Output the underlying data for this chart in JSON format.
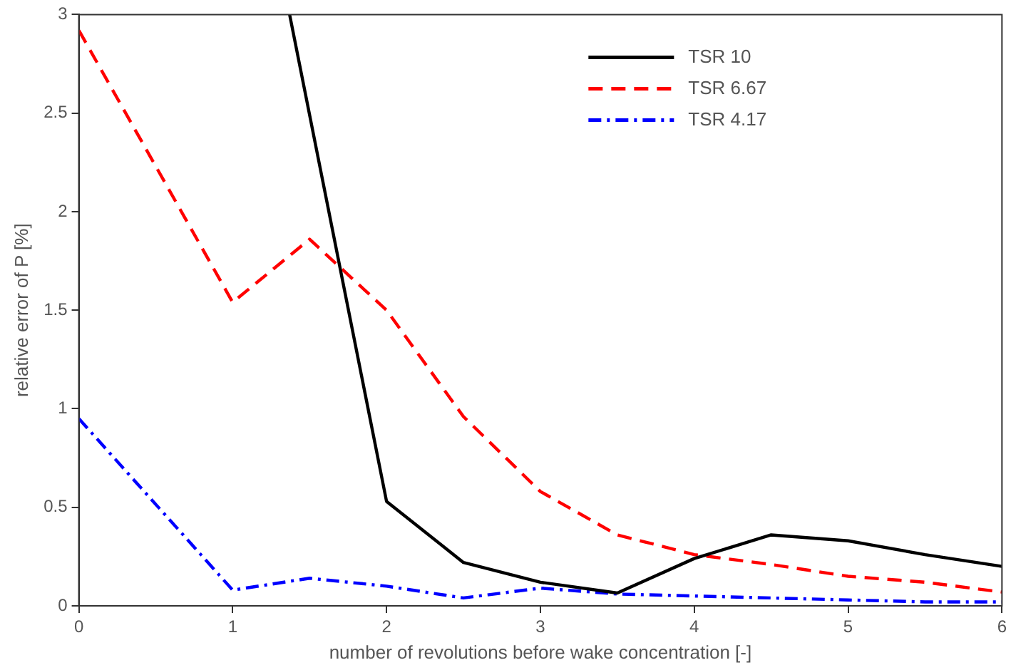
{
  "chart_data": {
    "type": "line",
    "xlabel": "number of revolutions before wake concentration [-]",
    "ylabel": "relative error of P [%]",
    "xlim": [
      0,
      6
    ],
    "xticks": [
      0,
      1,
      2,
      3,
      4,
      5,
      6
    ],
    "ylim": [
      0,
      3
    ],
    "yticks": [
      0,
      0.5,
      1,
      1.5,
      2,
      2.5,
      3
    ],
    "grid": false,
    "legend": "top right",
    "marker": "none",
    "series": [
      {
        "name": "TSR 10",
        "color": "#000000",
        "line_style": "solid",
        "x": [
          1.37,
          2,
          2.5,
          3,
          3.5,
          4,
          4.5,
          5,
          5.5,
          6
        ],
        "values": [
          3,
          0.53,
          0.22,
          0.12,
          0.065,
          0.24,
          0.36,
          0.33,
          0.26,
          0.2
        ]
      },
      {
        "name": "TSR 6.67",
        "color": "#ff0000",
        "line_style": "dashed",
        "x": [
          0,
          1,
          1.5,
          2,
          2.5,
          3,
          3.5,
          4,
          4.5,
          5,
          5.5,
          6
        ],
        "values": [
          2.92,
          1.54,
          1.86,
          1.5,
          0.96,
          0.58,
          0.36,
          0.26,
          0.21,
          0.15,
          0.12,
          0.07
        ]
      },
      {
        "name": "TSR 4.17",
        "color": "#0000ff",
        "line_style": "dashdot",
        "x": [
          0,
          1,
          1.5,
          2,
          2.5,
          3,
          3.5,
          4,
          4.5,
          5,
          5.5,
          6
        ],
        "values": [
          0.95,
          0.08,
          0.14,
          0.1,
          0.04,
          0.09,
          0.06,
          0.05,
          0.04,
          0.03,
          0.02,
          0.02
        ]
      }
    ]
  }
}
